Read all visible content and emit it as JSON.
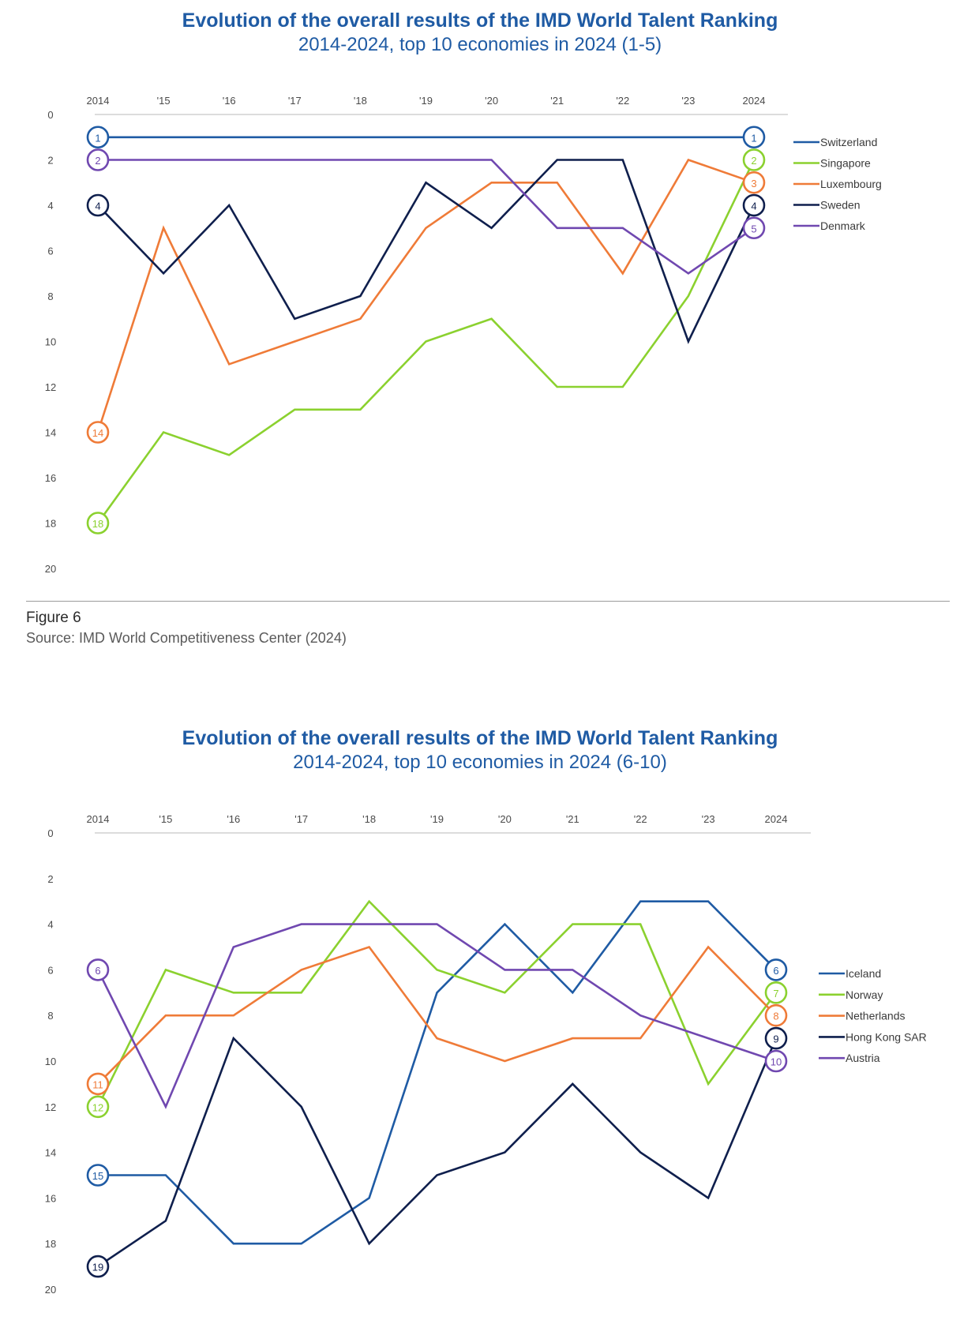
{
  "colors": {
    "blue": "#1f5ba4",
    "green": "#8bd12f",
    "orange": "#ef7b38",
    "navy": "#0f1f4d",
    "purple": "#7048b0",
    "axis": "#c8c8c8"
  },
  "figure": {
    "label": "Figure 6",
    "source": "Source: IMD World Competitiveness Center (2024)"
  },
  "chart_data": [
    {
      "type": "line",
      "title": "Evolution of the overall results of the IMD World Talent Ranking",
      "subtitle": "2014-2024, top 10 economies in 2024 (1-5)",
      "x": [
        "2014",
        "'15",
        "'16",
        "'17",
        "'18",
        "'19",
        "'20",
        "'21",
        "'22",
        "'23",
        "2024"
      ],
      "y_ticks": [
        "0",
        "2",
        "4",
        "6",
        "8",
        "10",
        "12",
        "14",
        "16",
        "18",
        "20"
      ],
      "ylim": [
        0,
        20
      ],
      "y_inverted": true,
      "legend_position": "right",
      "series": [
        {
          "name": "Switzerland",
          "color": "#1f5ba4",
          "values": [
            1,
            1,
            1,
            1,
            1,
            1,
            1,
            1,
            1,
            1,
            1
          ]
        },
        {
          "name": "Singapore",
          "color": "#8bd12f",
          "values": [
            18,
            14,
            15,
            13,
            13,
            10,
            9,
            12,
            12,
            8,
            2
          ]
        },
        {
          "name": "Luxembourg",
          "color": "#ef7b38",
          "values": [
            14,
            5,
            11,
            10,
            9,
            5,
            3,
            3,
            7,
            2,
            3
          ]
        },
        {
          "name": "Sweden",
          "color": "#0f1f4d",
          "values": [
            4,
            7,
            4,
            9,
            8,
            3,
            5,
            2,
            2,
            10,
            4
          ]
        },
        {
          "name": "Denmark",
          "color": "#7048b0",
          "values": [
            2,
            2,
            2,
            2,
            2,
            2,
            2,
            5,
            5,
            7,
            5
          ]
        }
      ]
    },
    {
      "type": "line",
      "title": "Evolution of the overall results of the IMD World Talent Ranking",
      "subtitle": "2014-2024, top 10 economies in 2024 (6-10)",
      "x": [
        "2014",
        "'15",
        "'16",
        "'17",
        "'18",
        "'19",
        "'20",
        "'21",
        "'22",
        "'23",
        "2024"
      ],
      "y_ticks": [
        "0",
        "2",
        "4",
        "6",
        "8",
        "10",
        "12",
        "14",
        "16",
        "18",
        "20"
      ],
      "ylim": [
        0,
        20
      ],
      "y_inverted": true,
      "legend_position": "right",
      "series": [
        {
          "name": "Iceland",
          "color": "#1f5ba4",
          "values": [
            15,
            15,
            18,
            18,
            16,
            7,
            4,
            7,
            3,
            3,
            6
          ]
        },
        {
          "name": "Norway",
          "color": "#8bd12f",
          "values": [
            12,
            6,
            7,
            7,
            3,
            6,
            7,
            4,
            4,
            11,
            7
          ]
        },
        {
          "name": "Netherlands",
          "color": "#ef7b38",
          "values": [
            11,
            8,
            8,
            6,
            5,
            9,
            10,
            9,
            9,
            5,
            8
          ]
        },
        {
          "name": "Hong Kong SAR",
          "color": "#0f1f4d",
          "values": [
            19,
            17,
            9,
            12,
            18,
            15,
            14,
            11,
            14,
            16,
            9
          ]
        },
        {
          "name": "Austria",
          "color": "#7048b0",
          "values": [
            6,
            12,
            5,
            4,
            4,
            4,
            6,
            6,
            8,
            9,
            10
          ]
        }
      ]
    }
  ]
}
